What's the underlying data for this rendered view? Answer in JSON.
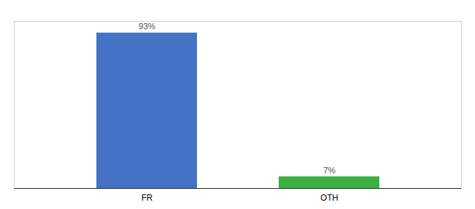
{
  "chart_data": {
    "type": "bar",
    "categories": [
      "FR",
      "OTH"
    ],
    "values": [
      93,
      7
    ],
    "value_labels": [
      "93%",
      "7%"
    ],
    "colors": [
      "#4472C4",
      "#3CB043"
    ],
    "ylim": [
      0,
      100
    ],
    "data_labels": true,
    "tick_labels": "x"
  }
}
